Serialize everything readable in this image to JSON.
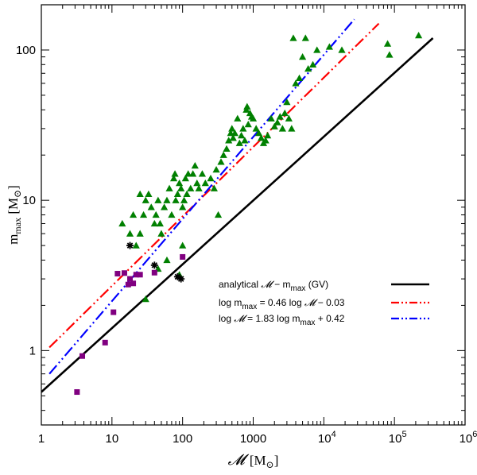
{
  "chart_data": {
    "type": "scatter",
    "log_x": true,
    "log_y": true,
    "xlim": [
      1,
      1000000
    ],
    "ylim": [
      0.32,
      200
    ],
    "xlabel": {
      "symbol": "𝓜",
      "unit": "[M",
      "sun": "⊙",
      "close": "]"
    },
    "ylabel": {
      "main": "m",
      "sub": "max",
      "unit": " [M",
      "sun": "⊙",
      "close": "]"
    },
    "x_ticks": [
      {
        "value": 1,
        "label": "1"
      },
      {
        "value": 10,
        "label": "10"
      },
      {
        "value": 100,
        "label": "100"
      },
      {
        "value": 1000,
        "label": "1000"
      },
      {
        "value": 10000,
        "label": "10",
        "exp": "4"
      },
      {
        "value": 100000,
        "label": "10",
        "exp": "5"
      },
      {
        "value": 1000000,
        "label": "10",
        "exp": "6"
      }
    ],
    "y_ticks": [
      {
        "value": 1,
        "label": "1"
      },
      {
        "value": 10,
        "label": "10"
      },
      {
        "value": 100,
        "label": "100"
      }
    ],
    "lines": [
      {
        "name": "analytical",
        "legend": "analytical 𝓜 − m_max (GV)",
        "color": "#000000",
        "style": "solid",
        "points": [
          [
            1,
            0.53
          ],
          [
            350000,
            120
          ]
        ]
      },
      {
        "name": "fit1",
        "legend": "log m_max = 0.46 log 𝓜 − 0.03",
        "color": "#ff0000",
        "style": "dash-dot-dot",
        "points": [
          [
            1.3,
            1.05
          ],
          [
            60000,
            150
          ]
        ]
      },
      {
        "name": "fit2",
        "legend": "log 𝓜 = 1.83 log m_max + 0.42",
        "color": "#0000ff",
        "style": "dash-dot-dot",
        "points": [
          [
            1.3,
            0.7
          ],
          [
            27000,
            160
          ]
        ]
      }
    ],
    "legend_lines": [
      {
        "parts": [
          "analytical ",
          "𝓜",
          " − m",
          "max",
          " (GV)"
        ]
      },
      {
        "parts": [
          "log m",
          "max",
          " = 0.46 log ",
          "𝓜",
          " − 0.03"
        ]
      },
      {
        "parts": [
          "log ",
          "𝓜",
          " = 1.83 log m",
          "max",
          " + 0.42"
        ]
      }
    ],
    "series": [
      {
        "name": "clusters",
        "marker": "triangle",
        "color": "#008000",
        "points": [
          [
            14,
            7
          ],
          [
            18,
            6
          ],
          [
            20,
            8
          ],
          [
            22,
            5
          ],
          [
            25,
            11
          ],
          [
            25,
            6
          ],
          [
            28,
            8
          ],
          [
            30,
            10
          ],
          [
            33,
            11
          ],
          [
            36,
            9
          ],
          [
            40,
            7
          ],
          [
            42,
            8
          ],
          [
            45,
            10
          ],
          [
            48,
            7
          ],
          [
            50,
            6
          ],
          [
            55,
            9
          ],
          [
            60,
            10
          ],
          [
            65,
            12
          ],
          [
            70,
            8
          ],
          [
            75,
            14
          ],
          [
            78,
            15
          ],
          [
            80,
            10
          ],
          [
            85,
            11
          ],
          [
            90,
            13
          ],
          [
            95,
            12
          ],
          [
            100,
            9
          ],
          [
            105,
            10
          ],
          [
            110,
            14
          ],
          [
            115,
            11
          ],
          [
            120,
            15
          ],
          [
            130,
            12
          ],
          [
            140,
            15
          ],
          [
            150,
            17
          ],
          [
            160,
            13
          ],
          [
            170,
            12
          ],
          [
            190,
            15
          ],
          [
            210,
            13
          ],
          [
            250,
            14
          ],
          [
            280,
            12
          ],
          [
            300,
            16
          ],
          [
            320,
            8
          ],
          [
            350,
            18
          ],
          [
            380,
            20
          ],
          [
            420,
            22
          ],
          [
            450,
            25
          ],
          [
            480,
            28
          ],
          [
            500,
            30
          ],
          [
            520,
            26
          ],
          [
            550,
            28
          ],
          [
            600,
            35
          ],
          [
            640,
            24
          ],
          [
            680,
            27
          ],
          [
            720,
            30
          ],
          [
            760,
            25
          ],
          [
            800,
            40
          ],
          [
            820,
            42
          ],
          [
            850,
            32
          ],
          [
            900,
            38
          ],
          [
            950,
            36
          ],
          [
            1000,
            35
          ],
          [
            1100,
            30
          ],
          [
            1200,
            28
          ],
          [
            1300,
            26
          ],
          [
            1400,
            24
          ],
          [
            1500,
            25
          ],
          [
            1600,
            27
          ],
          [
            1800,
            35
          ],
          [
            2000,
            31
          ],
          [
            2200,
            33
          ],
          [
            2400,
            36
          ],
          [
            2600,
            30
          ],
          [
            2800,
            38
          ],
          [
            3000,
            45
          ],
          [
            3200,
            35
          ],
          [
            3500,
            30
          ],
          [
            3700,
            120
          ],
          [
            4000,
            60
          ],
          [
            4500,
            65
          ],
          [
            5000,
            90
          ],
          [
            5500,
            120
          ],
          [
            6000,
            75
          ],
          [
            7000,
            80
          ],
          [
            8000,
            100
          ],
          [
            12000,
            105
          ],
          [
            18000,
            100
          ],
          [
            80000,
            110
          ],
          [
            85000,
            93
          ],
          [
            220000,
            125
          ],
          [
            30,
            2.2
          ],
          [
            45,
            3.5
          ],
          [
            60,
            4
          ],
          [
            90,
            3.2
          ],
          [
            100,
            5
          ]
        ]
      },
      {
        "name": "purple",
        "marker": "square",
        "color": "#800080",
        "points": [
          [
            3.2,
            0.53
          ],
          [
            3.8,
            0.92
          ],
          [
            8,
            1.13
          ],
          [
            10.5,
            1.8
          ],
          [
            12,
            3.25
          ],
          [
            15,
            3.28
          ],
          [
            17,
            2.75
          ],
          [
            18,
            3.0
          ],
          [
            20,
            2.8
          ],
          [
            22,
            3.2
          ],
          [
            25,
            3.2
          ],
          [
            40,
            3.3
          ],
          [
            100,
            4.2
          ]
        ]
      },
      {
        "name": "stars",
        "marker": "asterisk",
        "color": "#000000",
        "points": [
          [
            18,
            5.0
          ],
          [
            40,
            3.7
          ],
          [
            85,
            3.1
          ],
          [
            95,
            3.0
          ]
        ]
      }
    ]
  }
}
